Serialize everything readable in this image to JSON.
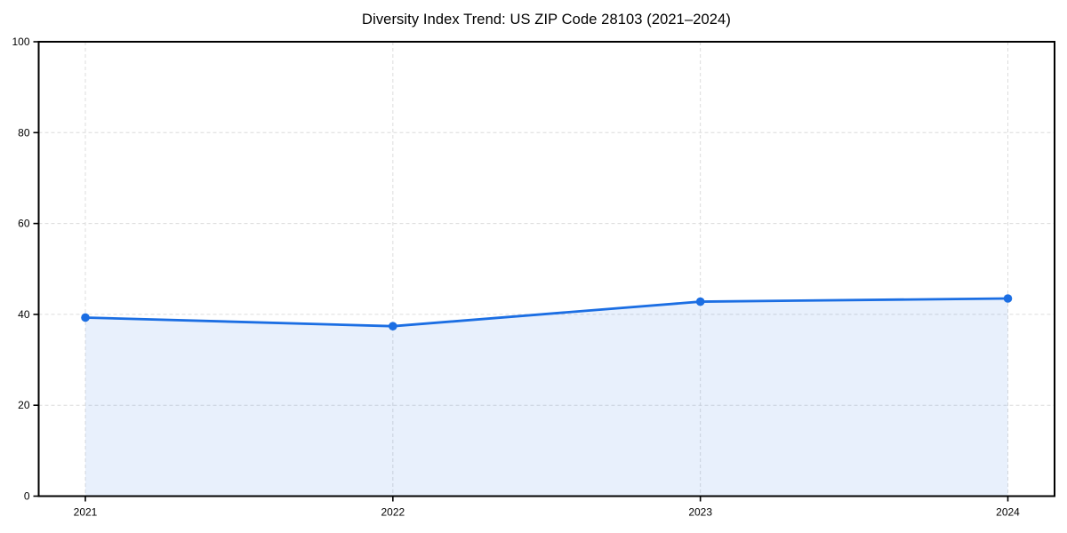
{
  "page": {
    "background": "#ffffff"
  },
  "chart_data": {
    "type": "line",
    "title": "Diversity Index Trend: US ZIP Code 28103 (2021–2024)",
    "categories": [
      "2021",
      "2022",
      "2023",
      "2024"
    ],
    "series": [
      {
        "name": "Diversity Index",
        "values": [
          39.3,
          37.4,
          42.8,
          43.5
        ]
      }
    ],
    "xlabel": "",
    "ylabel": "",
    "ylim": [
      0,
      100
    ],
    "yticks": [
      0,
      20,
      40,
      60,
      80,
      100
    ],
    "grid": true,
    "grid_style": "dashed",
    "legend": "none",
    "area_fill": true,
    "style": {
      "line_color": "#1b6ee3",
      "marker_color": "#1b6ee3",
      "fill_color": "#1b6ee3",
      "fill_opacity": 0.1,
      "grid_color": "#dcdcdc",
      "axis_color": "#000000",
      "text_color": "#000000"
    }
  }
}
